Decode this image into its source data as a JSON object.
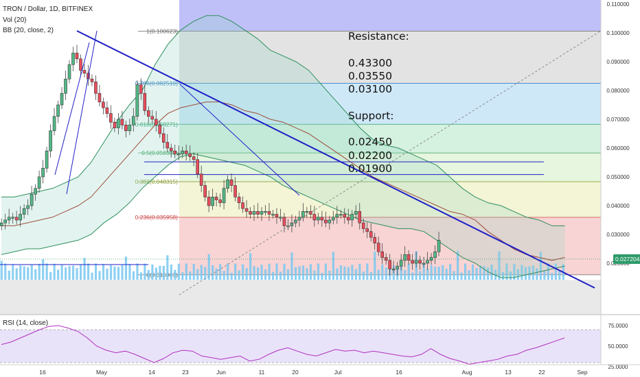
{
  "header": {
    "title": "TRON / Dollar, 1D, BITFINEX",
    "indicator_vol": "Vol (20)",
    "indicator_bb": "BB (20, close, 2)",
    "indicator_rsi": "RSI (14, close)"
  },
  "notes": {
    "resistance_title": "Resistance:",
    "resistance_levels": [
      "0.43300",
      "0.03550",
      "0.03100"
    ],
    "support_title": "Support:",
    "support_levels": [
      "0.02450",
      "0.02200",
      "0.01900"
    ]
  },
  "colors": {
    "up": "#53b987",
    "down": "#eb4d5c",
    "bb": "#2e8f5c",
    "basis": "#9e4d3a",
    "trendline": "#1f1fc6",
    "rsi": "#b02fc0",
    "volume": "#79c8f1"
  },
  "chart_data": {
    "type": "candlestick",
    "x_tick_labels": [
      "16",
      "May",
      "14",
      "23",
      "Jun",
      "11",
      "20",
      "Jul",
      "16",
      "Aug",
      "13",
      "22",
      "Sep"
    ],
    "price_axis": {
      "scale": "linear",
      "range": [
        0.0,
        0.11
      ],
      "tick_labels": [
        "0.110000",
        "0.100000",
        "0.090000",
        "0.080000",
        "0.070000",
        "0.060000",
        "0.050000",
        "0.040000",
        "0.030000",
        "0.020000"
      ],
      "last_price_label": "0.027204"
    },
    "rsi_axis": {
      "range": [
        20,
        80
      ],
      "tick_labels": [
        "75.0000",
        "50.0000",
        "25.0000"
      ],
      "band": [
        30,
        70
      ]
    },
    "fibonacci": [
      {
        "label": "1(0.100623)",
        "value": 0.100623
      },
      {
        "label": "0.786(0.082510)",
        "value": 0.08251
      },
      {
        "label": "0.618(0.068271)",
        "value": 0.068271
      },
      {
        "label": "0.5(0.058303)",
        "value": 0.058303
      },
      {
        "label": "0.382(0.048315)",
        "value": 0.048315
      },
      {
        "label": "0.236(0.035958)",
        "value": 0.035958
      },
      {
        "label": "0(0.015983)",
        "value": 0.015983
      }
    ],
    "horizontal_lines": [
      0.0552,
      0.0508
    ],
    "series": [
      {
        "name": "close",
        "values": [
          0.034,
          0.035,
          0.036,
          0.036,
          0.035,
          0.037,
          0.039,
          0.04,
          0.044,
          0.046,
          0.05,
          0.053,
          0.059,
          0.066,
          0.071,
          0.075,
          0.079,
          0.084,
          0.089,
          0.093,
          0.091,
          0.087,
          0.086,
          0.084,
          0.083,
          0.079,
          0.076,
          0.074,
          0.072,
          0.069,
          0.067,
          0.07,
          0.068,
          0.066,
          0.068,
          0.071,
          0.082,
          0.079,
          0.073,
          0.071,
          0.07,
          0.068,
          0.065,
          0.062,
          0.06,
          0.059,
          0.058,
          0.058,
          0.059,
          0.058,
          0.057,
          0.056,
          0.051,
          0.047,
          0.043,
          0.04,
          0.043,
          0.042,
          0.041,
          0.046,
          0.049,
          0.047,
          0.043,
          0.041,
          0.039,
          0.038,
          0.037,
          0.038,
          0.037,
          0.038,
          0.038,
          0.037,
          0.037,
          0.036,
          0.036,
          0.033,
          0.033,
          0.034,
          0.035,
          0.036,
          0.038,
          0.038,
          0.037,
          0.035,
          0.036,
          0.035,
          0.034,
          0.035,
          0.036,
          0.037,
          0.037,
          0.036,
          0.035,
          0.037,
          0.038,
          0.034,
          0.032,
          0.031,
          0.029,
          0.027,
          0.024,
          0.022,
          0.021,
          0.018,
          0.018,
          0.019,
          0.021,
          0.023,
          0.021,
          0.02,
          0.021,
          0.02,
          0.02,
          0.021,
          0.022,
          0.024,
          0.028
        ]
      },
      {
        "name": "bb_upper",
        "values": [
          0.043,
          0.043,
          0.044,
          0.045,
          0.046,
          0.048,
          0.05,
          0.055,
          0.062,
          0.069,
          0.075,
          0.08,
          0.089,
          0.096,
          0.101,
          0.104,
          0.106,
          0.106,
          0.104,
          0.101,
          0.098,
          0.094,
          0.092,
          0.09,
          0.087,
          0.082,
          0.077,
          0.072,
          0.067,
          0.063,
          0.061,
          0.06,
          0.058,
          0.056,
          0.054,
          0.05,
          0.046,
          0.043,
          0.041,
          0.04,
          0.038,
          0.036,
          0.035,
          0.033,
          0.033
        ]
      },
      {
        "name": "bb_basis",
        "values": [
          0.033,
          0.033,
          0.034,
          0.035,
          0.036,
          0.038,
          0.04,
          0.043,
          0.048,
          0.053,
          0.058,
          0.063,
          0.068,
          0.072,
          0.074,
          0.075,
          0.076,
          0.076,
          0.075,
          0.073,
          0.072,
          0.07,
          0.069,
          0.067,
          0.065,
          0.062,
          0.059,
          0.056,
          0.053,
          0.05,
          0.048,
          0.046,
          0.044,
          0.042,
          0.04,
          0.038,
          0.037,
          0.035,
          0.031,
          0.028,
          0.025,
          0.023,
          0.022,
          0.021,
          0.022
        ]
      },
      {
        "name": "bb_lower",
        "values": [
          0.023,
          0.024,
          0.025,
          0.025,
          0.026,
          0.027,
          0.028,
          0.03,
          0.034,
          0.037,
          0.041,
          0.046,
          0.05,
          0.054,
          0.057,
          0.058,
          0.057,
          0.056,
          0.055,
          0.054,
          0.052,
          0.05,
          0.047,
          0.045,
          0.043,
          0.041,
          0.039,
          0.037,
          0.035,
          0.034,
          0.033,
          0.032,
          0.032,
          0.031,
          0.028,
          0.025,
          0.022,
          0.02,
          0.017,
          0.015,
          0.015,
          0.016,
          0.017,
          0.018,
          0.019
        ]
      },
      {
        "name": "rsi",
        "values": [
          52,
          55,
          60,
          65,
          70,
          74,
          75,
          72,
          68,
          60,
          50,
          45,
          42,
          44,
          40,
          35,
          30,
          35,
          42,
          45,
          44,
          38,
          36,
          34,
          36,
          38,
          32,
          34,
          40,
          45,
          48,
          44,
          40,
          38,
          42,
          46,
          44,
          45,
          42,
          44,
          42,
          40,
          38,
          37,
          40,
          47,
          40,
          35,
          32,
          28,
          30,
          32,
          34,
          38,
          40,
          45,
          48,
          52,
          56,
          60
        ]
      }
    ]
  }
}
